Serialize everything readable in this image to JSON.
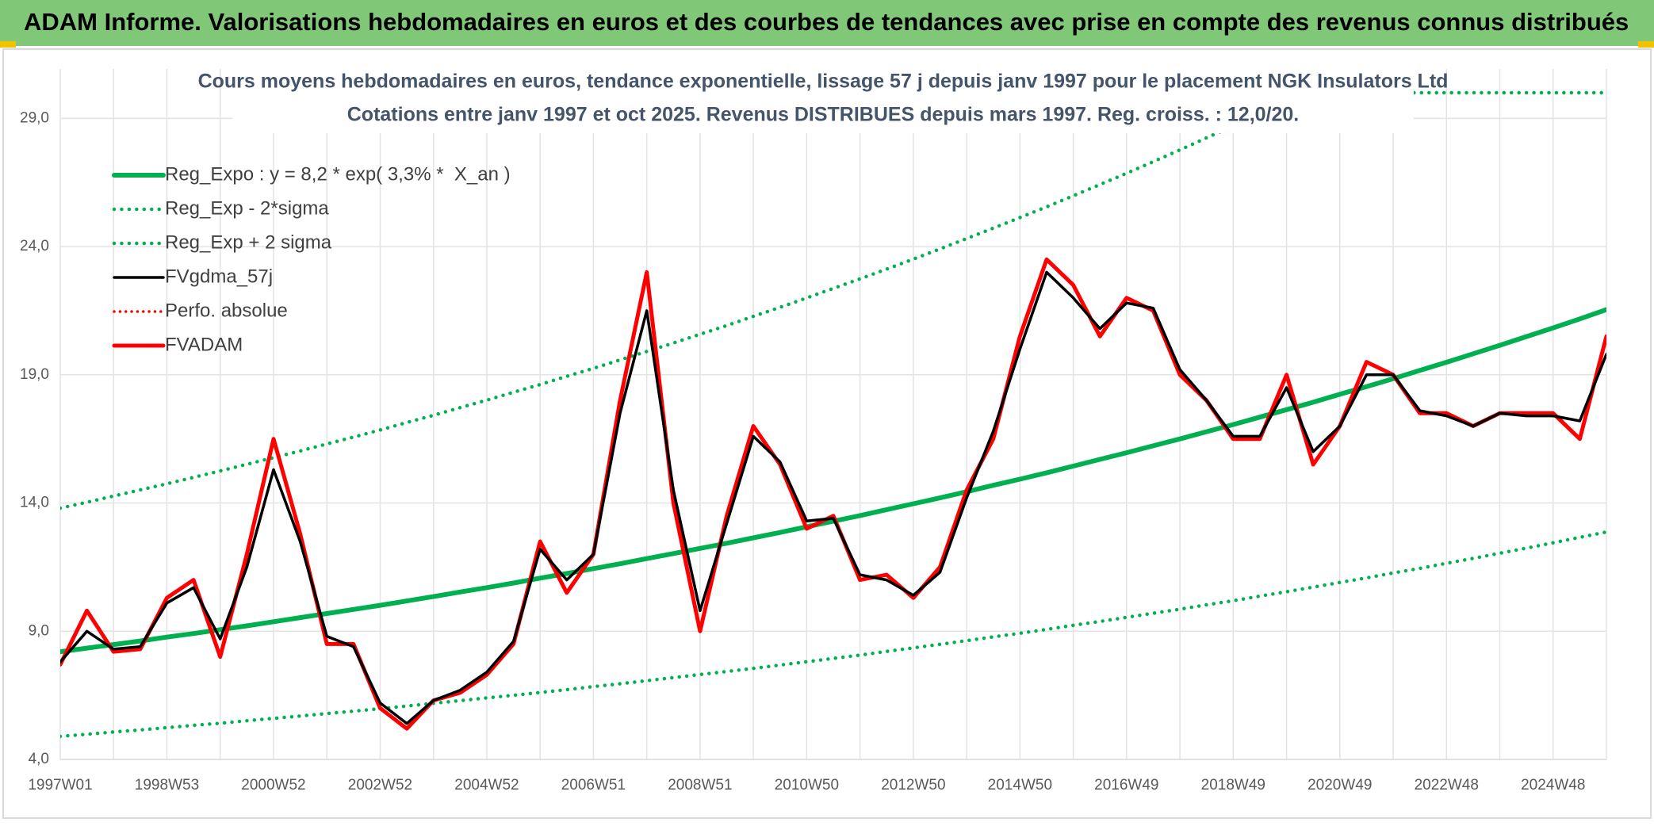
{
  "header": {
    "title": "ADAM Informe. Valorisations hebdomadaires en euros et des courbes de tendances avec prise en compte des revenus connus distribués"
  },
  "chart_data": {
    "type": "line",
    "title": "Cours moyens hebdomadaires en euros, tendance exponentielle, lissage 57 j depuis janv 1997 pour le placement NGK Insulators Ltd",
    "subtitle": "Cotations entre janv 1997 et oct 2025. Revenus DISTRIBUES depuis mars 1997. Reg. croiss. : 12,0/20.",
    "categories": [
      "1997W01",
      null,
      null,
      null,
      "1998W53",
      null,
      null,
      null,
      "2000W52",
      null,
      null,
      null,
      "2002W52",
      null,
      null,
      null,
      "2004W52",
      null,
      null,
      null,
      "2006W51",
      null,
      null,
      null,
      "2008W51",
      null,
      null,
      null,
      "2010W50",
      null,
      null,
      null,
      "2012W50",
      null,
      null,
      null,
      "2014W50",
      null,
      null,
      null,
      "2016W49",
      null,
      null,
      null,
      "2018W49",
      null,
      null,
      null,
      "2020W49",
      null,
      null,
      null,
      "2022W48",
      null,
      null,
      null,
      "2024W48",
      null,
      null
    ],
    "ylim": [
      4,
      30
    ],
    "yticks": [
      {
        "value": 4,
        "label": "4,0"
      },
      {
        "value": 9,
        "label": "9,0"
      },
      {
        "value": 14,
        "label": "14,0"
      },
      {
        "value": 19,
        "label": "19,0"
      },
      {
        "value": 24,
        "label": "24,0"
      },
      {
        "value": 29,
        "label": "29,0"
      }
    ],
    "grid": true,
    "legend": "upper-left",
    "series": [
      {
        "name": "Reg_Expo : y = 8,2 * exp( 3,3% *  X_an )",
        "color": "#00b050",
        "style": "solid",
        "width": 6,
        "values": [
          8.2,
          8.34,
          8.48,
          8.62,
          8.77,
          8.91,
          9.06,
          9.21,
          9.37,
          9.53,
          9.69,
          9.85,
          10.01,
          10.18,
          10.35,
          10.53,
          10.7,
          10.88,
          11.07,
          11.25,
          11.44,
          11.63,
          11.83,
          12.03,
          12.23,
          12.43,
          12.64,
          12.85,
          13.07,
          13.29,
          13.51,
          13.74,
          13.97,
          14.2,
          14.44,
          14.69,
          14.93,
          15.18,
          15.44,
          15.7,
          15.96,
          16.23,
          16.5,
          16.78,
          17.06,
          17.35,
          17.64,
          17.93,
          18.24,
          18.54,
          18.85,
          19.17,
          19.49,
          19.82,
          20.15,
          20.49,
          20.83,
          21.18,
          21.54
        ]
      },
      {
        "name": "Reg_Exp - 2*sigma",
        "color": "#00b050",
        "style": "dotted",
        "width": 4.5,
        "values": [
          4.9,
          4.98,
          5.07,
          5.15,
          5.24,
          5.33,
          5.41,
          5.51,
          5.6,
          5.69,
          5.79,
          5.88,
          5.98,
          6.08,
          6.19,
          6.29,
          6.4,
          6.5,
          6.61,
          6.72,
          6.84,
          6.95,
          7.07,
          7.19,
          7.31,
          7.43,
          7.55,
          7.68,
          7.81,
          7.94,
          8.07,
          8.21,
          8.35,
          8.49,
          8.63,
          8.78,
          8.92,
          9.07,
          9.23,
          9.38,
          9.54,
          9.7,
          9.86,
          10.03,
          10.19,
          10.37,
          10.54,
          10.72,
          10.9,
          11.08,
          11.27,
          11.45,
          11.65,
          11.84,
          12.04,
          12.24,
          12.45,
          12.66,
          12.87
        ]
      },
      {
        "name": "Reg_Exp + 2 sigma",
        "color": "#00b050",
        "style": "dotted",
        "width": 4.5,
        "values": [
          13.8,
          14.03,
          14.27,
          14.51,
          14.75,
          15.0,
          15.25,
          15.51,
          15.77,
          16.03,
          16.3,
          16.57,
          16.85,
          17.14,
          17.42,
          17.72,
          18.01,
          18.32,
          18.62,
          18.94,
          19.25,
          19.58,
          19.91,
          20.24,
          20.58,
          20.92,
          21.28,
          21.63,
          22.0,
          22.37,
          22.74,
          23.12,
          23.51,
          23.91,
          24.31,
          24.72,
          25.13,
          25.55,
          25.98,
          26.42,
          26.86,
          27.31,
          27.77,
          28.24,
          28.71,
          29.19,
          29.68,
          30,
          30,
          30,
          30,
          30,
          30,
          30,
          30,
          30,
          30,
          30,
          30
        ]
      },
      {
        "name": "FVgdma_57j",
        "color": "#000000",
        "style": "solid",
        "width": 3.5,
        "layer": 3,
        "values": [
          7.8,
          9.0,
          8.3,
          8.4,
          10.1,
          10.7,
          8.7,
          11.5,
          15.3,
          12.5,
          8.8,
          8.4,
          6.2,
          5.4,
          6.3,
          6.7,
          7.4,
          8.6,
          12.2,
          11.0,
          12.0,
          17.5,
          21.5,
          14.5,
          9.8,
          13.2,
          16.6,
          15.6,
          13.3,
          13.4,
          11.2,
          11.0,
          10.4,
          11.3,
          14.2,
          16.8,
          20.0,
          23.0,
          22.0,
          20.8,
          21.8,
          21.6,
          19.2,
          18.0,
          16.6,
          16.6,
          18.5,
          16.0,
          17.0,
          19.0,
          19.0,
          17.6,
          17.4,
          17.0,
          17.5,
          17.4,
          17.4,
          17.2,
          19.8
        ]
      },
      {
        "name": "Perfo. absolue",
        "color": "#ff0000",
        "style": "dotted",
        "width": 3.5,
        "layer": 1,
        "values": [
          7.7,
          9.8,
          8.2,
          8.3,
          10.3,
          11.0,
          8.0,
          12.0,
          16.5,
          12.8,
          8.5,
          8.5,
          6.0,
          5.2,
          6.3,
          6.6,
          7.3,
          8.5,
          12.5,
          10.5,
          12.0,
          18.0,
          23.0,
          14.0,
          9.0,
          13.5,
          17.0,
          15.5,
          13.0,
          13.5,
          11.0,
          11.2,
          10.3,
          11.5,
          14.5,
          16.5,
          20.5,
          23.5,
          22.5,
          20.5,
          22.0,
          21.5,
          19.0,
          18.0,
          16.5,
          16.5,
          19.0,
          15.5,
          17.0,
          19.5,
          19.0,
          17.5,
          17.5,
          17.0,
          17.5,
          17.5,
          17.5,
          16.5,
          20.5
        ]
      },
      {
        "name": "FVADAM",
        "color": "#ff0000",
        "style": "solid",
        "width": 5,
        "layer": 2,
        "values": [
          7.7,
          9.8,
          8.2,
          8.3,
          10.3,
          11.0,
          8.0,
          12.0,
          16.5,
          12.8,
          8.5,
          8.5,
          6.0,
          5.2,
          6.3,
          6.6,
          7.3,
          8.5,
          12.5,
          10.5,
          12.0,
          18.0,
          23.0,
          14.0,
          9.0,
          13.5,
          17.0,
          15.5,
          13.0,
          13.5,
          11.0,
          11.2,
          10.3,
          11.5,
          14.5,
          16.5,
          20.5,
          23.5,
          22.5,
          20.5,
          22.0,
          21.5,
          19.0,
          18.0,
          16.5,
          16.5,
          19.0,
          15.5,
          17.0,
          19.5,
          19.0,
          17.5,
          17.5,
          17.0,
          17.5,
          17.5,
          17.5,
          16.5,
          20.5
        ]
      }
    ]
  }
}
